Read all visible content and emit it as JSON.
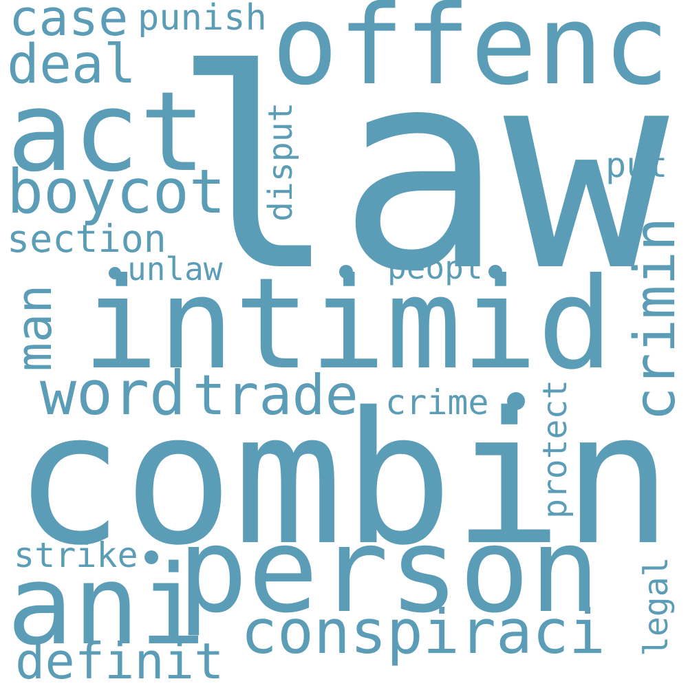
{
  "word_color": "#5b9db6",
  "background_color": "#ffffff",
  "words": {
    "law": "law",
    "combin": "combin",
    "person": "person",
    "intimid": "intimid",
    "offenc": "offenc",
    "act": "act",
    "ani": "ani",
    "conspiraci": "conspiraci",
    "crimin": "crimin",
    "word": "word",
    "trade": "trade",
    "boycot": "boycot",
    "case": "case",
    "punish": "punish",
    "deal": "deal",
    "section": "section",
    "man": "man",
    "disput": "disput",
    "unlaw": "unlaw",
    "peopl": "peopl",
    "put": "put",
    "crime": "crime",
    "protect": "protect",
    "strike": "strike",
    "legal": "legal",
    "definit": "definit"
  }
}
